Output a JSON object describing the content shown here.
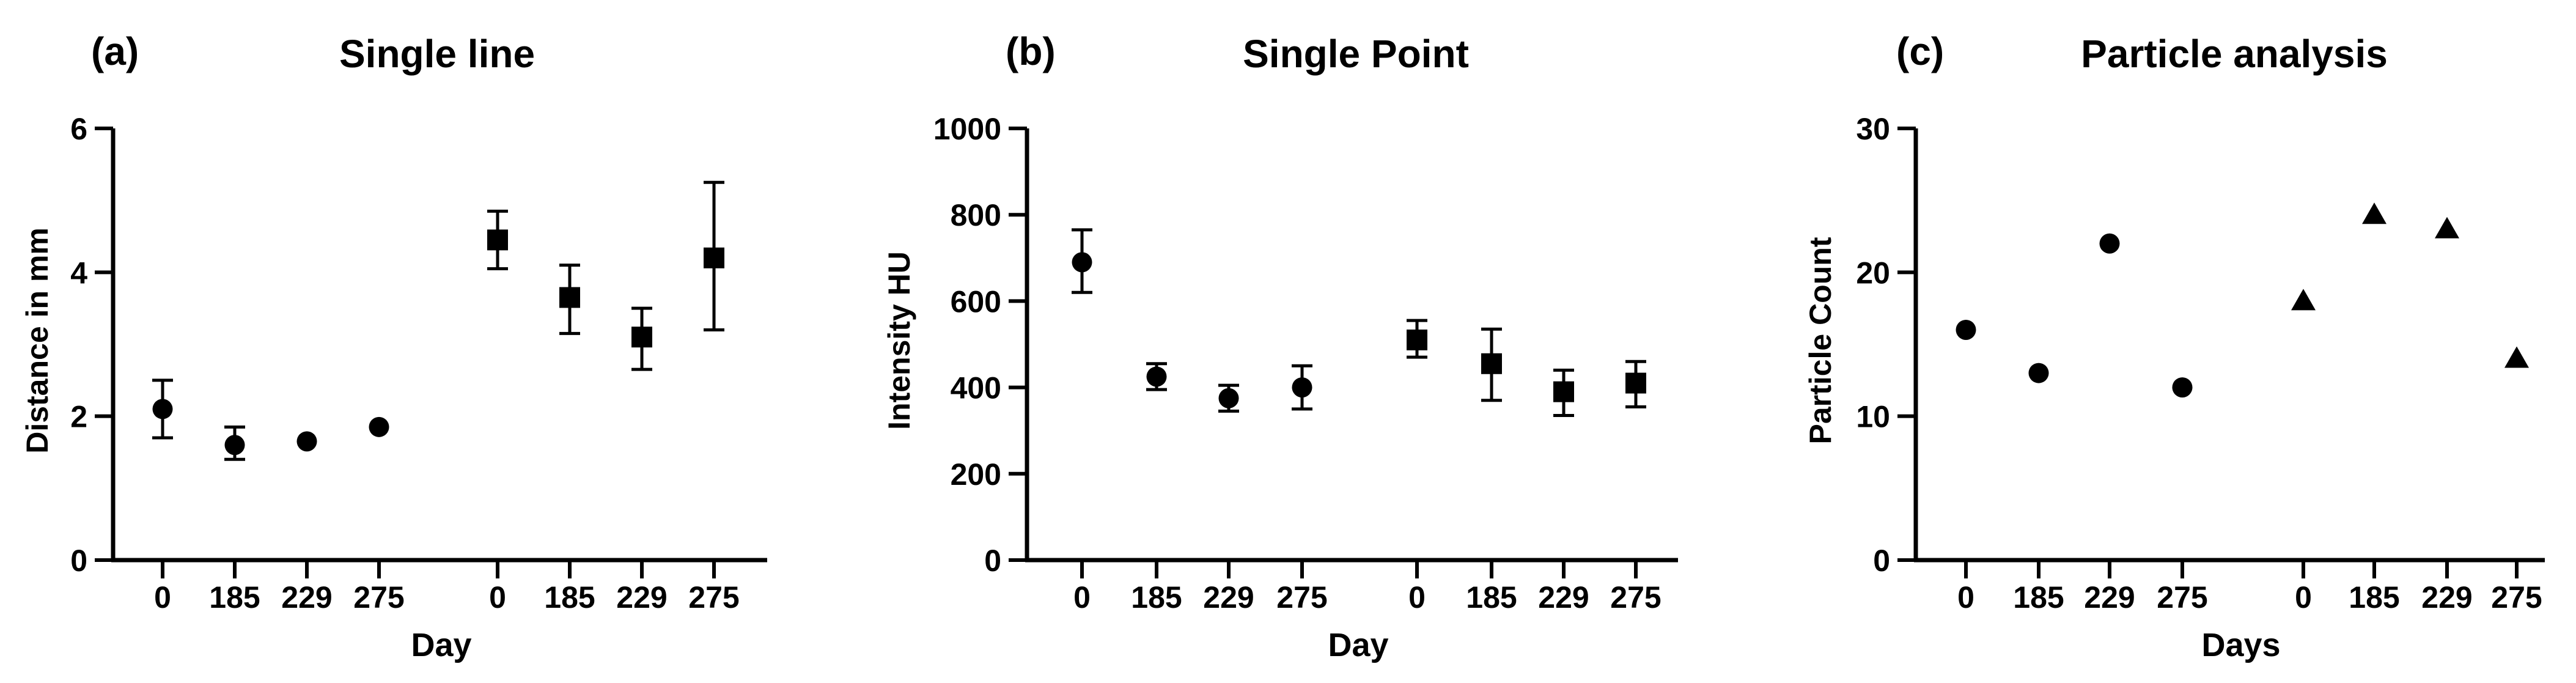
{
  "figure": {
    "background_color": "#ffffff",
    "ink_color": "#000000",
    "panel_count": 3
  },
  "chart_data": [
    {
      "type": "scatter",
      "panel_label": "(a)",
      "title": "Single line",
      "xlabel": "Day",
      "ylabel": "Distance in mm",
      "ylim": [
        0,
        6
      ],
      "yticks": [
        0,
        2,
        4,
        6
      ],
      "ytick_labels": [
        "0",
        "2",
        "4",
        "6"
      ],
      "categories": [
        "0",
        "185",
        "229",
        "275"
      ],
      "x_tick_labels": [
        "0",
        "185",
        "229",
        "275",
        "0",
        "185",
        "229",
        "275"
      ],
      "x_groups": 2,
      "grid": false,
      "legend": "none",
      "series": [
        {
          "name": "group-1-circles",
          "marker": "circle",
          "values": [
            2.1,
            1.6,
            1.65,
            1.85
          ],
          "err_high": [
            0.4,
            0.25,
            0,
            0
          ],
          "err_low": [
            0.4,
            0.2,
            0,
            0
          ]
        },
        {
          "name": "group-2-squares",
          "marker": "square",
          "values": [
            4.45,
            3.65,
            3.1,
            4.2
          ],
          "err_high": [
            0.4,
            0.45,
            0.4,
            1.05
          ],
          "err_low": [
            0.4,
            0.5,
            0.45,
            1.0
          ]
        }
      ]
    },
    {
      "type": "scatter",
      "panel_label": "(b)",
      "title": "Single Point",
      "xlabel": "Day",
      "ylabel": "Intensity HU",
      "ylim": [
        0,
        1000
      ],
      "yticks": [
        0,
        200,
        400,
        600,
        800,
        1000
      ],
      "ytick_labels": [
        "0",
        "200",
        "400",
        "600",
        "800",
        "1000"
      ],
      "categories": [
        "0",
        "185",
        "229",
        "275"
      ],
      "x_tick_labels": [
        "0",
        "185",
        "229",
        "275",
        "0",
        "185",
        "229",
        "275"
      ],
      "x_groups": 2,
      "grid": false,
      "legend": "none",
      "series": [
        {
          "name": "group-1-circles",
          "marker": "circle",
          "values": [
            690,
            425,
            375,
            400
          ],
          "err_high": [
            75,
            30,
            30,
            50
          ],
          "err_low": [
            70,
            30,
            30,
            50
          ]
        },
        {
          "name": "group-2-squares",
          "marker": "square",
          "values": [
            510,
            455,
            390,
            410
          ],
          "err_high": [
            45,
            80,
            50,
            50
          ],
          "err_low": [
            40,
            85,
            55,
            55
          ]
        }
      ]
    },
    {
      "type": "scatter",
      "panel_label": "(c)",
      "title": "Particle analysis",
      "xlabel": "Days",
      "ylabel": "Particle Count",
      "ylim": [
        0,
        30
      ],
      "yticks": [
        0,
        10,
        20,
        30
      ],
      "ytick_labels": [
        "0",
        "10",
        "20",
        "30"
      ],
      "categories": [
        "0",
        "185",
        "229",
        "275"
      ],
      "x_tick_labels": [
        "0",
        "185",
        "229",
        "275",
        "0",
        "185",
        "229",
        "275"
      ],
      "x_groups": 2,
      "grid": false,
      "legend": "none",
      "series": [
        {
          "name": "group-1-circles",
          "marker": "circle",
          "values": [
            16,
            13,
            22,
            12
          ],
          "err_high": [
            0,
            0,
            0,
            0
          ],
          "err_low": [
            0,
            0,
            0,
            0
          ]
        },
        {
          "name": "group-2-triangles",
          "marker": "triangle",
          "values": [
            18,
            24,
            23,
            14
          ],
          "err_high": [
            0,
            0,
            0,
            0
          ],
          "err_low": [
            0,
            0,
            0,
            0
          ]
        }
      ]
    }
  ]
}
